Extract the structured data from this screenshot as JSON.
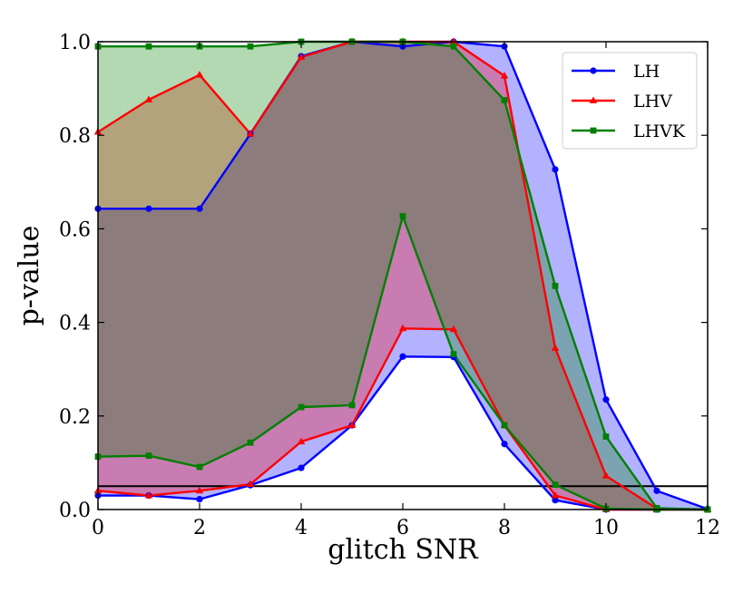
{
  "chart_data": {
    "type": "line",
    "xlabel": "glitch SNR",
    "ylabel": "p-value",
    "xlim": [
      0,
      12
    ],
    "ylim": [
      0,
      1
    ],
    "xticks": [
      "0",
      "2",
      "4",
      "6",
      "8",
      "10",
      "12"
    ],
    "yticks": [
      "0.0",
      "0.2",
      "0.4",
      "0.6",
      "0.8",
      "1.0"
    ],
    "x": [
      0,
      1,
      2,
      3,
      4,
      5,
      6,
      7,
      8,
      9,
      10,
      11,
      12
    ],
    "reference_line": 0.05,
    "legend_position": "top-right",
    "grid": false,
    "series": [
      {
        "name": "LH",
        "color": "#0000ff",
        "fill_color": "#0000ff",
        "marker": "circle",
        "upper": [
          0.643,
          0.643,
          0.643,
          0.803,
          0.969,
          1.0,
          0.99,
          1.0,
          0.99,
          0.727,
          0.235,
          0.04,
          0.001
        ],
        "lower": [
          0.03,
          0.03,
          0.022,
          0.052,
          0.089,
          0.18,
          0.327,
          0.326,
          0.14,
          0.02,
          0.0,
          0.0,
          0.0
        ]
      },
      {
        "name": "LHV",
        "color": "#ff0000",
        "fill_color": "#ff0000",
        "marker": "triangle",
        "upper": [
          0.807,
          0.876,
          0.929,
          0.803,
          0.967,
          1.0,
          1.0,
          1.0,
          0.927,
          0.345,
          0.072,
          0.002,
          0.0
        ],
        "lower": [
          0.04,
          0.03,
          0.04,
          0.054,
          0.145,
          0.18,
          0.387,
          0.385,
          0.18,
          0.03,
          0.0,
          0.0,
          0.0
        ]
      },
      {
        "name": "LHVK",
        "color": "#007f00",
        "fill_color": "#008000",
        "marker": "square",
        "upper": [
          0.99,
          0.99,
          0.99,
          0.99,
          1.0,
          1.0,
          1.0,
          0.99,
          0.875,
          0.478,
          0.156,
          0.003,
          0.0
        ],
        "lower": [
          0.113,
          0.115,
          0.091,
          0.143,
          0.219,
          0.223,
          0.627,
          0.332,
          0.18,
          0.053,
          0.002,
          0.0,
          0.0
        ]
      }
    ]
  }
}
